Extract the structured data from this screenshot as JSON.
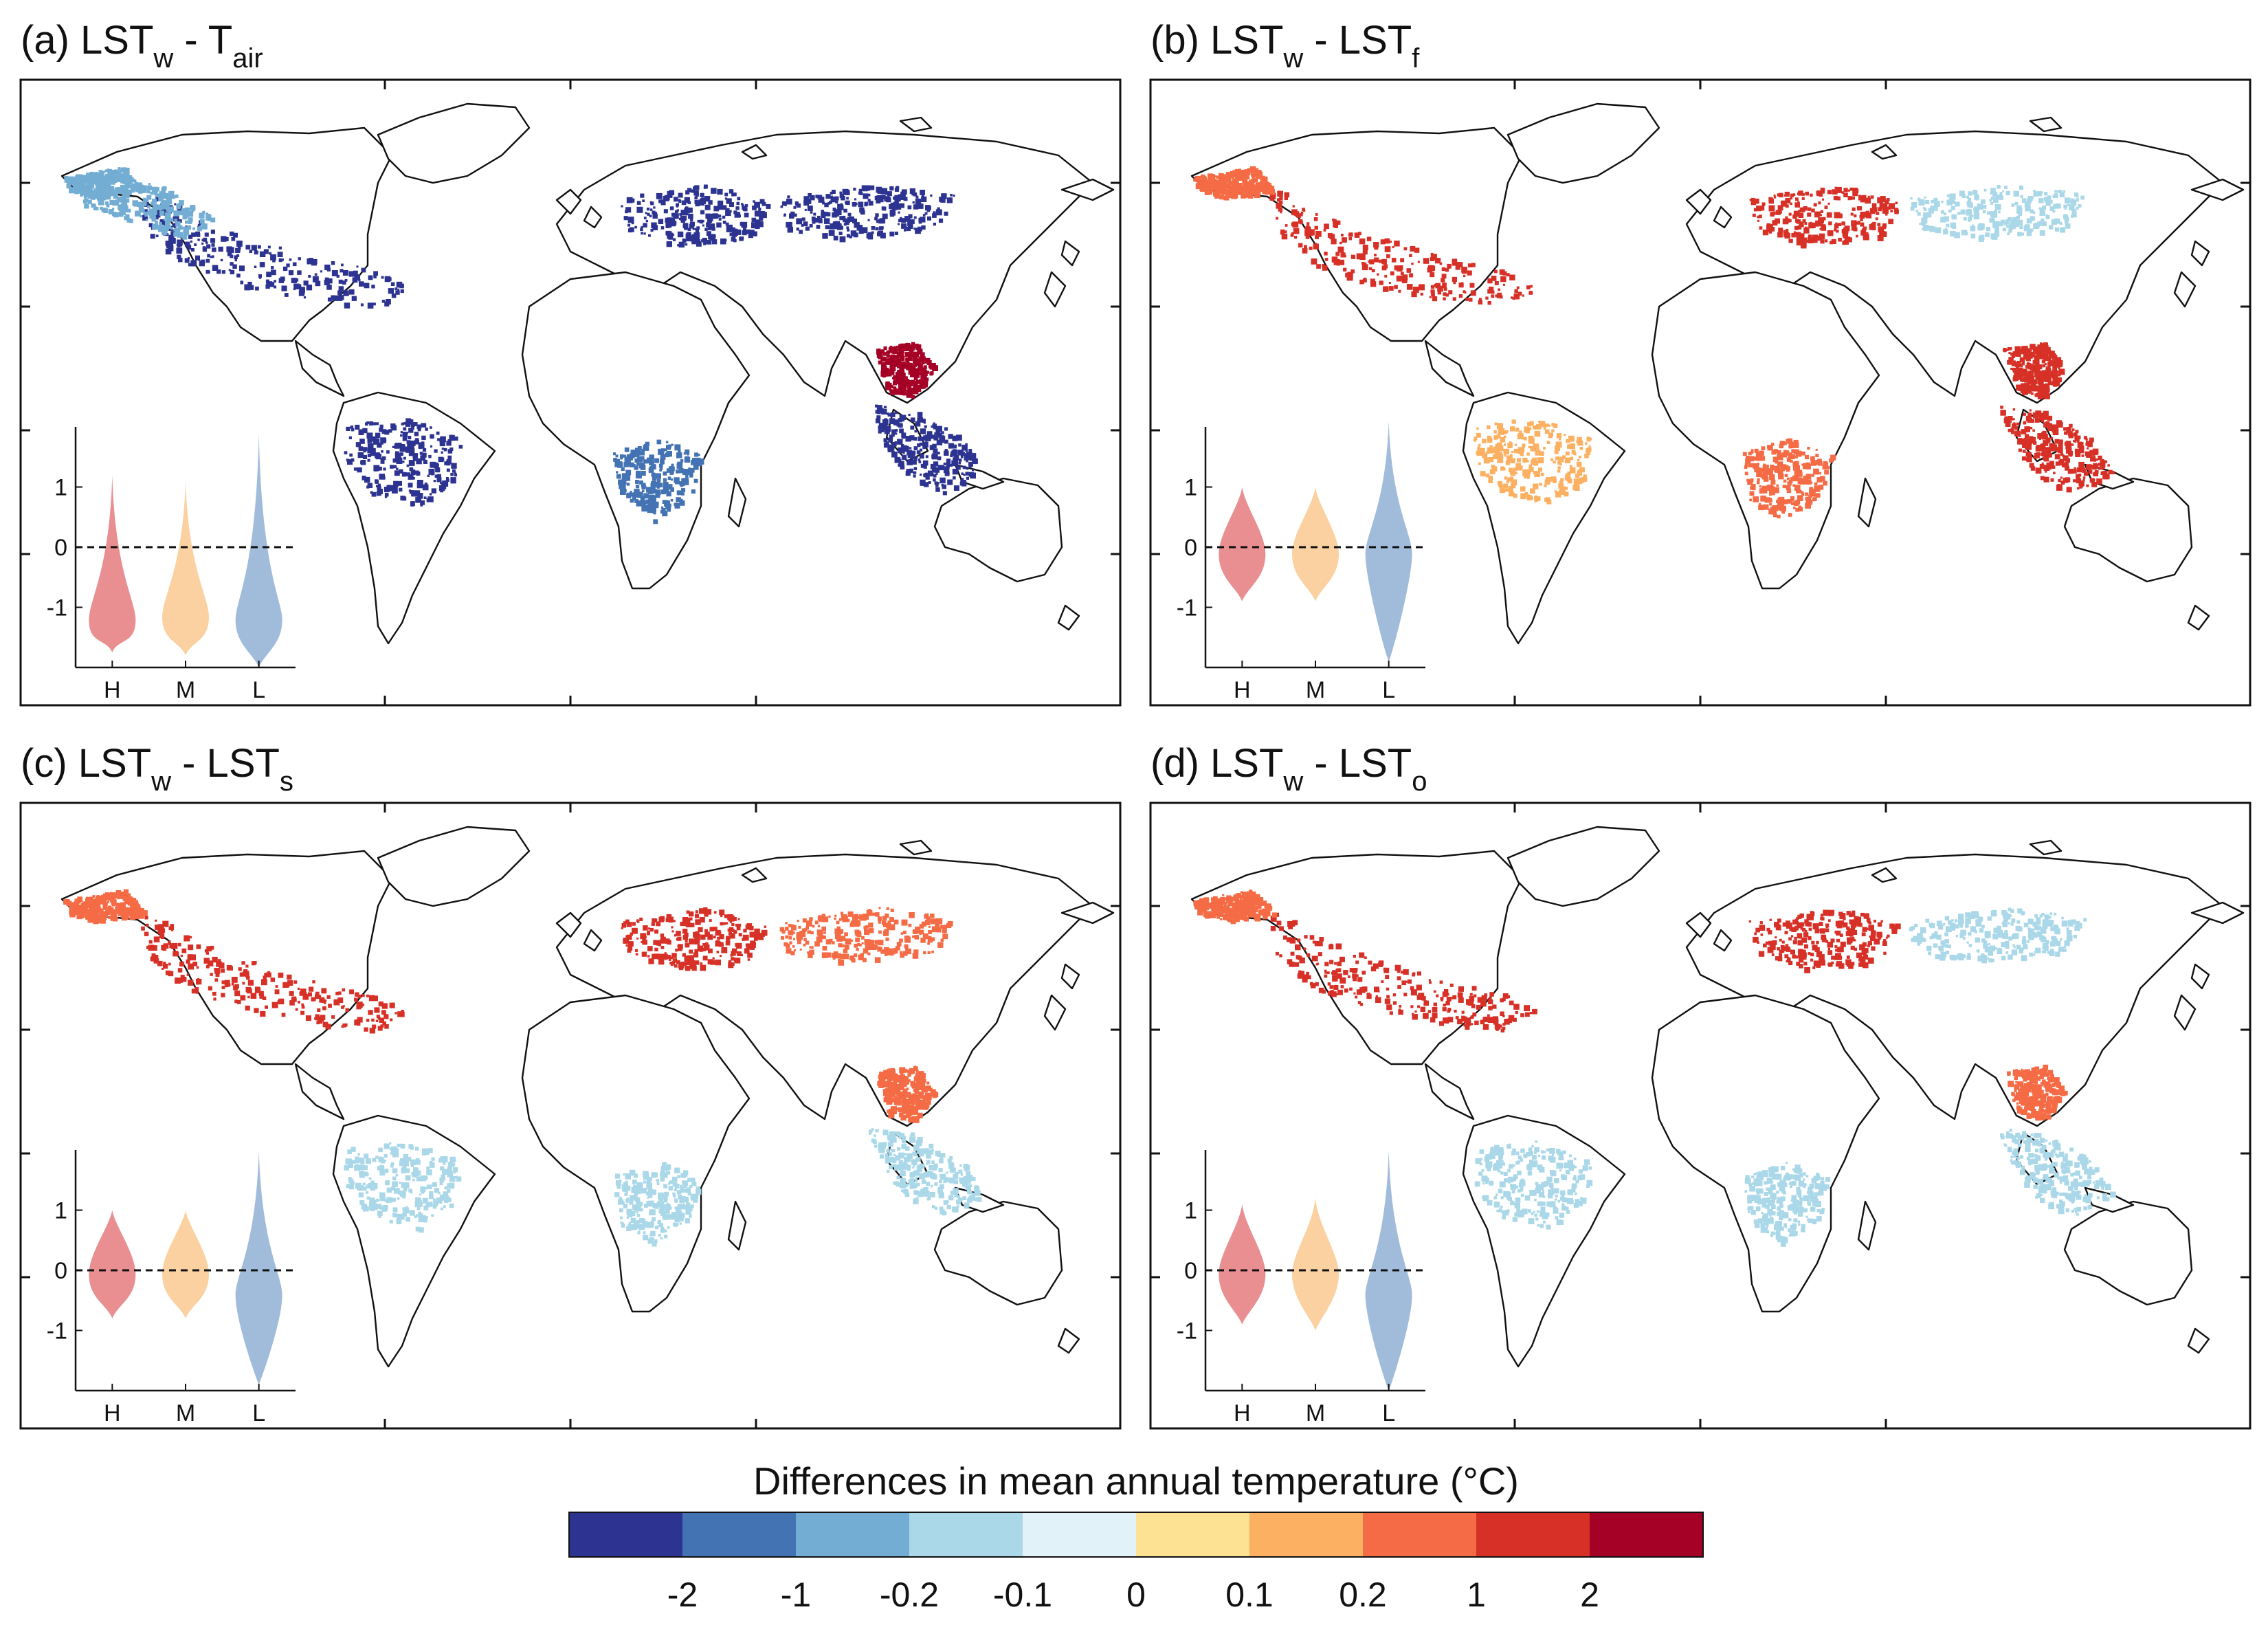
{
  "figure": {
    "panels": [
      {
        "tag": "(a)",
        "title_main": "LST",
        "title_sub1": "w",
        "title_mid": " - T",
        "title_sub2": "air",
        "map_regions": [
          {
            "name": "boreal-north-america",
            "level": -2
          },
          {
            "name": "western-canada",
            "level": -0.2
          },
          {
            "name": "alaska",
            "level": -0.2
          },
          {
            "name": "siberia",
            "level": -2
          },
          {
            "name": "europe",
            "level": -2
          },
          {
            "name": "amazon",
            "level": -2
          },
          {
            "name": "congo",
            "level": -1
          },
          {
            "name": "southeast-asia",
            "level": -2
          },
          {
            "name": "east-china",
            "level": 2
          }
        ],
        "chart_data": {
          "type": "violin",
          "categories": [
            "H",
            "M",
            "L"
          ],
          "colors": [
            "#e8898c",
            "#fbcf9c",
            "#9cb8d9"
          ],
          "ylim": [
            -2,
            2
          ],
          "yticks": [
            1,
            0,
            -1
          ],
          "yticklabels": [
            "1",
            "0",
            "-1"
          ],
          "reference_line": 0,
          "series": [
            {
              "name": "H",
              "median": -1.1,
              "min": -1.75,
              "max": 1.2
            },
            {
              "name": "M",
              "median": -1.05,
              "min": -1.8,
              "max": 1.1
            },
            {
              "name": "L",
              "median": -1.1,
              "min": -2.0,
              "max": 1.9
            }
          ]
        }
      },
      {
        "tag": "(b)",
        "title_main": "LST",
        "title_sub1": "w",
        "title_mid": " - LST",
        "title_sub2": "f",
        "map_regions": [
          {
            "name": "boreal-north-america",
            "level": 1
          },
          {
            "name": "alaska",
            "level": 0.2
          },
          {
            "name": "siberia",
            "level": -0.1
          },
          {
            "name": "europe",
            "level": 1
          },
          {
            "name": "amazon",
            "level": 0.1
          },
          {
            "name": "congo",
            "level": 0.2
          },
          {
            "name": "southeast-asia",
            "level": 1
          },
          {
            "name": "east-china",
            "level": 1
          }
        ],
        "chart_data": {
          "type": "violin",
          "categories": [
            "H",
            "M",
            "L"
          ],
          "colors": [
            "#e8898c",
            "#fbcf9c",
            "#9cb8d9"
          ],
          "ylim": [
            -2,
            2
          ],
          "yticks": [
            1,
            0,
            -1
          ],
          "yticklabels": [
            "1",
            "0",
            "-1"
          ],
          "reference_line": 0,
          "series": [
            {
              "name": "H",
              "median": 0.0,
              "min": -0.9,
              "max": 1.0
            },
            {
              "name": "M",
              "median": 0.0,
              "min": -0.9,
              "max": 1.0
            },
            {
              "name": "L",
              "median": 0.0,
              "min": -1.9,
              "max": 2.1
            }
          ]
        }
      },
      {
        "tag": "(c)",
        "title_main": "LST",
        "title_sub1": "w",
        "title_mid": " - LST",
        "title_sub2": "s",
        "map_regions": [
          {
            "name": "boreal-north-america",
            "level": 1
          },
          {
            "name": "alaska",
            "level": 0.2
          },
          {
            "name": "siberia",
            "level": 0.2
          },
          {
            "name": "europe",
            "level": 1
          },
          {
            "name": "amazon",
            "level": -0.1
          },
          {
            "name": "congo",
            "level": -0.1
          },
          {
            "name": "southeast-asia",
            "level": -0.1
          },
          {
            "name": "east-china",
            "level": 0.2
          }
        ],
        "chart_data": {
          "type": "violin",
          "categories": [
            "H",
            "M",
            "L"
          ],
          "colors": [
            "#e8898c",
            "#fbcf9c",
            "#9cb8d9"
          ],
          "ylim": [
            -2,
            2
          ],
          "yticks": [
            1,
            0,
            -1
          ],
          "yticklabels": [
            "1",
            "0",
            "-1"
          ],
          "reference_line": 0,
          "series": [
            {
              "name": "H",
              "median": 0.05,
              "min": -0.8,
              "max": 1.0
            },
            {
              "name": "M",
              "median": 0.05,
              "min": -0.8,
              "max": 1.0
            },
            {
              "name": "L",
              "median": -0.3,
              "min": -1.9,
              "max": 2.0
            }
          ]
        }
      },
      {
        "tag": "(d)",
        "title_main": "LST",
        "title_sub1": "w",
        "title_mid": " - LST",
        "title_sub2": "o",
        "map_regions": [
          {
            "name": "boreal-north-america",
            "level": 1
          },
          {
            "name": "alaska",
            "level": 0.2
          },
          {
            "name": "siberia",
            "level": -0.1
          },
          {
            "name": "europe",
            "level": 1
          },
          {
            "name": "amazon",
            "level": -0.1
          },
          {
            "name": "congo",
            "level": -0.1
          },
          {
            "name": "southeast-asia",
            "level": -0.1
          },
          {
            "name": "east-china",
            "level": 0.2
          }
        ],
        "chart_data": {
          "type": "violin",
          "categories": [
            "H",
            "M",
            "L"
          ],
          "colors": [
            "#e8898c",
            "#fbcf9c",
            "#9cb8d9"
          ],
          "ylim": [
            -2,
            2
          ],
          "yticks": [
            1,
            0,
            -1
          ],
          "yticklabels": [
            "1",
            "0",
            "-1"
          ],
          "reference_line": 0,
          "series": [
            {
              "name": "H",
              "median": 0.05,
              "min": -0.9,
              "max": 1.1
            },
            {
              "name": "M",
              "median": 0.05,
              "min": -1.0,
              "max": 1.2
            },
            {
              "name": "L",
              "median": -0.3,
              "min": -2.0,
              "max": 2.0
            }
          ]
        }
      }
    ],
    "colorbar": {
      "title": "Differences in mean annual temperature (°C)",
      "colors": [
        "#2d3390",
        "#4473b3",
        "#73add3",
        "#abd8e8",
        "#e1f2f8",
        "#fee293",
        "#fcb062",
        "#f46b45",
        "#d73027",
        "#a50026"
      ],
      "tick_labels": [
        "-2",
        "-1",
        "-0.2",
        "-0.1",
        "0",
        "0.1",
        "0.2",
        "1",
        "2"
      ]
    },
    "land_color": "#ffffff",
    "coast_color": "#111111"
  }
}
